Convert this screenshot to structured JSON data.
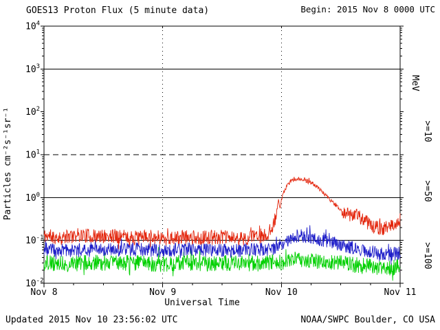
{
  "header": {
    "title": "GOES13 Proton Flux (5 minute data)",
    "begin": "Begin: 2015 Nov 8 0000 UTC"
  },
  "footer": {
    "updated": "Updated 2015 Nov 10 23:56:02 UTC",
    "source": "NOAA/SWPC Boulder, CO USA"
  },
  "chart_data": {
    "type": "line",
    "title": "GOES13 Proton Flux (5 minute data)",
    "xlabel": "Universal Time",
    "ylabel": "Particles cm⁻²s⁻¹sr⁻¹",
    "right_axis_label": "MeV",
    "x_ticks": [
      "Nov 8",
      "Nov 9",
      "Nov 10",
      "Nov 11"
    ],
    "x_range_days": [
      0,
      3
    ],
    "y_log_range": [
      -2,
      4
    ],
    "hlines_solid_log": [
      -1,
      0,
      3
    ],
    "hlines_dashed_log": [
      1
    ],
    "vlines_dotted_days": [
      1,
      2
    ],
    "noise_switch_flux": 0.5,
    "points_per_day": 288,
    "series": [
      {
        "name": ">=10",
        "units": "MeV",
        "color": "#e3250c",
        "seed": 11,
        "noise_log": 0.17,
        "noise_event_log": 0.045,
        "envelope": [
          [
            0,
            0.13
          ],
          [
            0.15,
            0.115
          ],
          [
            0.3,
            0.135
          ],
          [
            0.45,
            0.12
          ],
          [
            0.6,
            0.13
          ],
          [
            0.75,
            0.115
          ],
          [
            0.9,
            0.125
          ],
          [
            1.05,
            0.11
          ],
          [
            1.2,
            0.12
          ],
          [
            1.35,
            0.115
          ],
          [
            1.5,
            0.12
          ],
          [
            1.65,
            0.11
          ],
          [
            1.8,
            0.12
          ],
          [
            1.88,
            0.13
          ],
          [
            1.92,
            0.2
          ],
          [
            1.945,
            0.35
          ],
          [
            1.955,
            0.3
          ],
          [
            1.965,
            0.55
          ],
          [
            1.975,
            0.85
          ],
          [
            1.99,
            0.6
          ],
          [
            2.005,
            1.0
          ],
          [
            2.02,
            1.35
          ],
          [
            2.05,
            1.9
          ],
          [
            2.08,
            2.4
          ],
          [
            2.11,
            2.65
          ],
          [
            2.14,
            2.75
          ],
          [
            2.18,
            2.6
          ],
          [
            2.22,
            2.4
          ],
          [
            2.26,
            2.15
          ],
          [
            2.3,
            1.8
          ],
          [
            2.35,
            1.3
          ],
          [
            2.4,
            0.95
          ],
          [
            2.45,
            0.68
          ],
          [
            2.5,
            0.52
          ],
          [
            2.55,
            0.43
          ],
          [
            2.6,
            0.38
          ],
          [
            2.63,
            0.46
          ],
          [
            2.66,
            0.36
          ],
          [
            2.7,
            0.29
          ],
          [
            2.75,
            0.23
          ],
          [
            2.8,
            0.2
          ],
          [
            2.85,
            0.19
          ],
          [
            2.9,
            0.21
          ],
          [
            2.95,
            0.23
          ],
          [
            3,
            0.3
          ]
        ]
      },
      {
        "name": ">=50",
        "units": "MeV",
        "color": "#1d1dc9",
        "seed": 23,
        "noise_log": 0.16,
        "noise_event_log": 0.16,
        "envelope": [
          [
            0,
            0.062
          ],
          [
            0.2,
            0.058
          ],
          [
            0.4,
            0.065
          ],
          [
            0.6,
            0.06
          ],
          [
            0.8,
            0.062
          ],
          [
            1,
            0.058
          ],
          [
            1.2,
            0.062
          ],
          [
            1.4,
            0.06
          ],
          [
            1.6,
            0.058
          ],
          [
            1.8,
            0.06
          ],
          [
            1.95,
            0.065
          ],
          [
            2,
            0.08
          ],
          [
            2.05,
            0.1
          ],
          [
            2.1,
            0.12
          ],
          [
            2.15,
            0.13
          ],
          [
            2.2,
            0.125
          ],
          [
            2.3,
            0.11
          ],
          [
            2.4,
            0.095
          ],
          [
            2.5,
            0.08
          ],
          [
            2.6,
            0.068
          ],
          [
            2.7,
            0.06
          ],
          [
            2.8,
            0.052
          ],
          [
            2.9,
            0.048
          ],
          [
            3,
            0.05
          ]
        ]
      },
      {
        "name": ">=100",
        "units": "MeV",
        "color": "#00d000",
        "seed": 37,
        "noise_log": 0.19,
        "noise_event_log": 0.19,
        "envelope": [
          [
            0,
            0.03
          ],
          [
            0.2,
            0.028
          ],
          [
            0.4,
            0.031
          ],
          [
            0.6,
            0.029
          ],
          [
            0.8,
            0.03
          ],
          [
            1,
            0.028
          ],
          [
            1.2,
            0.03
          ],
          [
            1.4,
            0.029
          ],
          [
            1.6,
            0.03
          ],
          [
            1.8,
            0.029
          ],
          [
            2,
            0.031
          ],
          [
            2.1,
            0.035
          ],
          [
            2.2,
            0.036
          ],
          [
            2.3,
            0.033
          ],
          [
            2.4,
            0.031
          ],
          [
            2.5,
            0.029
          ],
          [
            2.6,
            0.027
          ],
          [
            2.7,
            0.025
          ],
          [
            2.8,
            0.023
          ],
          [
            2.9,
            0.022
          ],
          [
            3,
            0.024
          ]
        ]
      }
    ]
  }
}
